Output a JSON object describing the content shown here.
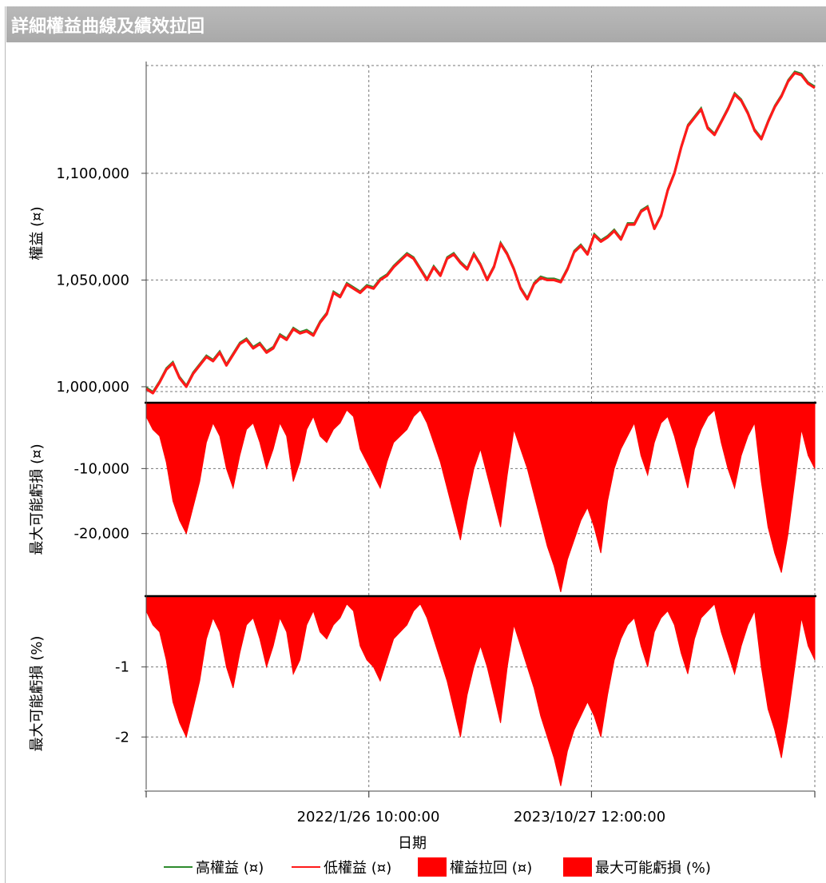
{
  "window": {
    "title": "詳細權益曲線及績效拉回"
  },
  "colors": {
    "high": "#2e8b2e",
    "low": "#ff1a1a",
    "fill": "#ff0000",
    "grid": "#777777"
  },
  "legend": [
    {
      "label": "高權益 (¤)",
      "kind": "line",
      "color": "#2e8b2e"
    },
    {
      "label": "低權益 (¤)",
      "kind": "line",
      "color": "#ff1a1a"
    },
    {
      "label": "權益拉回 (¤)",
      "kind": "box",
      "color": "#ff0000"
    },
    {
      "label": "最大可能虧損 (%)",
      "kind": "box",
      "color": "#ff0000"
    }
  ],
  "chart_data": [
    {
      "type": "line",
      "ylabel": "權益 (¤)",
      "yticks": [
        "1,000,000",
        "1,050,000",
        "1,100,000"
      ],
      "ytick_values": [
        1000000,
        1050000,
        1100000
      ],
      "ylim": [
        994000,
        1150500
      ],
      "xlim": [
        0,
        100
      ],
      "series": [
        {
          "name": "高權益 (¤)",
          "color": "#2e8b2e"
        },
        {
          "name": "低權益 (¤)",
          "color": "#ff1a1a"
        }
      ],
      "x": [
        0,
        1,
        2,
        3,
        4,
        5,
        6,
        7,
        8,
        9,
        10,
        11,
        12,
        13,
        14,
        15,
        16,
        17,
        18,
        19,
        20,
        21,
        22,
        23,
        24,
        25,
        26,
        27,
        28,
        29,
        30,
        31,
        32,
        33,
        34,
        35,
        36,
        37,
        38,
        39,
        40,
        41,
        42,
        43,
        44,
        45,
        46,
        47,
        48,
        49,
        50,
        51,
        52,
        53,
        54,
        55,
        56,
        57,
        58,
        59,
        60,
        61,
        62,
        63,
        64,
        65,
        66,
        67,
        68,
        69,
        70,
        71,
        72,
        73,
        74,
        75,
        76,
        77,
        78,
        79,
        80,
        81,
        82,
        83,
        84,
        85,
        86,
        87,
        88,
        89,
        90,
        91,
        92,
        93,
        94,
        95,
        96,
        97,
        98,
        99,
        100
      ],
      "values": [
        999000,
        997000,
        1002000,
        1008000,
        1011000,
        1004000,
        1000000,
        1006000,
        1010000,
        1014000,
        1012000,
        1016000,
        1010000,
        1015000,
        1020000,
        1022000,
        1018000,
        1020000,
        1016000,
        1018000,
        1024000,
        1022000,
        1027000,
        1025000,
        1026000,
        1024000,
        1030000,
        1034000,
        1044000,
        1042000,
        1048000,
        1046000,
        1044000,
        1047000,
        1046000,
        1050000,
        1052000,
        1056000,
        1059000,
        1062000,
        1060000,
        1055000,
        1050000,
        1056000,
        1052000,
        1060000,
        1062000,
        1058000,
        1055000,
        1062000,
        1057000,
        1050000,
        1056000,
        1067000,
        1062000,
        1055000,
        1046000,
        1041000,
        1048000,
        1051000,
        1050000,
        1050000,
        1049000,
        1055000,
        1063000,
        1066000,
        1062000,
        1071000,
        1068000,
        1070000,
        1073000,
        1069000,
        1076000,
        1076000,
        1082000,
        1084000,
        1074000,
        1080000,
        1092000,
        1100000,
        1112000,
        1122000,
        1126000,
        1130000,
        1121000,
        1118000,
        1124000,
        1130000,
        1137000,
        1134000,
        1128000,
        1120000,
        1116000,
        1124000,
        1131000,
        1136000,
        1143000,
        1147000,
        1146000,
        1142000,
        1140000
      ]
    },
    {
      "type": "area",
      "ylabel": "最大可能虧損 (¤)",
      "yticks": [
        "-10,000",
        "-20,000"
      ],
      "ytick_values": [
        -10000,
        -20000
      ],
      "ylim": [
        -29500,
        0
      ],
      "xlim": [
        0,
        100
      ],
      "series": [
        {
          "name": "權益拉回 (¤)",
          "color": "#ff0000"
        }
      ],
      "x": [
        0,
        1,
        2,
        3,
        4,
        5,
        6,
        7,
        8,
        9,
        10,
        11,
        12,
        13,
        14,
        15,
        16,
        17,
        18,
        19,
        20,
        21,
        22,
        23,
        24,
        25,
        26,
        27,
        28,
        29,
        30,
        31,
        32,
        33,
        34,
        35,
        36,
        37,
        38,
        39,
        40,
        41,
        42,
        43,
        44,
        45,
        46,
        47,
        48,
        49,
        50,
        51,
        52,
        53,
        54,
        55,
        56,
        57,
        58,
        59,
        60,
        61,
        62,
        63,
        64,
        65,
        66,
        67,
        68,
        69,
        70,
        71,
        72,
        73,
        74,
        75,
        76,
        77,
        78,
        79,
        80,
        81,
        82,
        83,
        84,
        85,
        86,
        87,
        88,
        89,
        90,
        91,
        92,
        93,
        94,
        95,
        96,
        97,
        98,
        99,
        100
      ],
      "values": [
        -2000,
        -4000,
        -5000,
        -9000,
        -15000,
        -18000,
        -20000,
        -16000,
        -12000,
        -6000,
        -3000,
        -5000,
        -10000,
        -13000,
        -8000,
        -4000,
        -3000,
        -6000,
        -10000,
        -7000,
        -3000,
        -5000,
        -12000,
        -9000,
        -4000,
        -2000,
        -5000,
        -6000,
        -4000,
        -3000,
        -1000,
        -2000,
        -7000,
        -9000,
        -11000,
        -13000,
        -9000,
        -6000,
        -5000,
        -4000,
        -2000,
        -1000,
        -3000,
        -6000,
        -9000,
        -13000,
        -17000,
        -21000,
        -15000,
        -10000,
        -7000,
        -11000,
        -15000,
        -19000,
        -11000,
        -4000,
        -7000,
        -10000,
        -14000,
        -18000,
        -22000,
        -25000,
        -29000,
        -24000,
        -21000,
        -18000,
        -16000,
        -19000,
        -23000,
        -15000,
        -10000,
        -7000,
        -5000,
        -3000,
        -8000,
        -11000,
        -6000,
        -3000,
        -2000,
        -5000,
        -9000,
        -13000,
        -7000,
        -4000,
        -2000,
        -1000,
        -6000,
        -10000,
        -13000,
        -8000,
        -5000,
        -3000,
        -12000,
        -19000,
        -23000,
        -26000,
        -20000,
        -12000,
        -4000,
        -8000,
        -10000
      ]
    },
    {
      "type": "area",
      "ylabel": "最大可能虧損 (%)",
      "yticks": [
        "-1",
        "-2"
      ],
      "ytick_values": [
        -1,
        -2
      ],
      "ylim": [
        -2.75,
        0
      ],
      "xlim": [
        0,
        100
      ],
      "series": [
        {
          "name": "最大可能虧損 (%)",
          "color": "#ff0000"
        }
      ],
      "x": [
        0,
        1,
        2,
        3,
        4,
        5,
        6,
        7,
        8,
        9,
        10,
        11,
        12,
        13,
        14,
        15,
        16,
        17,
        18,
        19,
        20,
        21,
        22,
        23,
        24,
        25,
        26,
        27,
        28,
        29,
        30,
        31,
        32,
        33,
        34,
        35,
        36,
        37,
        38,
        39,
        40,
        41,
        42,
        43,
        44,
        45,
        46,
        47,
        48,
        49,
        50,
        51,
        52,
        53,
        54,
        55,
        56,
        57,
        58,
        59,
        60,
        61,
        62,
        63,
        64,
        65,
        66,
        67,
        68,
        69,
        70,
        71,
        72,
        73,
        74,
        75,
        76,
        77,
        78,
        79,
        80,
        81,
        82,
        83,
        84,
        85,
        86,
        87,
        88,
        89,
        90,
        91,
        92,
        93,
        94,
        95,
        96,
        97,
        98,
        99,
        100
      ],
      "values": [
        -0.2,
        -0.4,
        -0.5,
        -0.9,
        -1.5,
        -1.8,
        -2.0,
        -1.6,
        -1.2,
        -0.6,
        -0.3,
        -0.5,
        -1.0,
        -1.3,
        -0.8,
        -0.4,
        -0.3,
        -0.6,
        -1.0,
        -0.7,
        -0.3,
        -0.5,
        -1.1,
        -0.9,
        -0.4,
        -0.2,
        -0.5,
        -0.6,
        -0.4,
        -0.3,
        -0.1,
        -0.2,
        -0.7,
        -0.9,
        -1.0,
        -1.2,
        -0.9,
        -0.6,
        -0.5,
        -0.4,
        -0.2,
        -0.1,
        -0.3,
        -0.6,
        -0.9,
        -1.2,
        -1.6,
        -2.0,
        -1.4,
        -1.0,
        -0.7,
        -1.0,
        -1.4,
        -1.8,
        -1.0,
        -0.4,
        -0.7,
        -1.0,
        -1.3,
        -1.7,
        -2.0,
        -2.3,
        -2.7,
        -2.2,
        -1.9,
        -1.7,
        -1.5,
        -1.7,
        -2.0,
        -1.4,
        -0.9,
        -0.6,
        -0.4,
        -0.3,
        -0.7,
        -1.0,
        -0.5,
        -0.3,
        -0.2,
        -0.4,
        -0.8,
        -1.1,
        -0.6,
        -0.3,
        -0.2,
        -0.1,
        -0.5,
        -0.8,
        -1.1,
        -0.7,
        -0.4,
        -0.2,
        -1.0,
        -1.6,
        -1.9,
        -2.3,
        -1.7,
        -1.0,
        -0.3,
        -0.7,
        -0.9
      ]
    }
  ],
  "xaxis": {
    "title": "日期",
    "ticks": [
      {
        "label": "2022/1/26 10:00:00",
        "x": 33.3
      },
      {
        "label": "2023/10/27 12:00:00",
        "x": 66.6
      }
    ]
  }
}
